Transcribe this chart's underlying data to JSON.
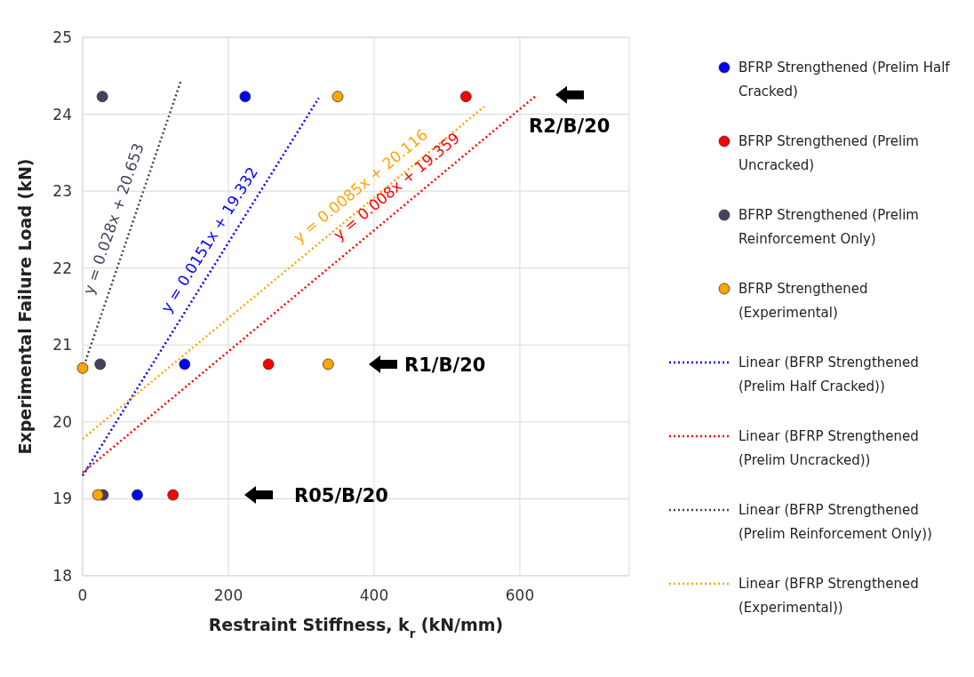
{
  "chart_data": {
    "type": "scatter",
    "xlabel": "Restraint Stiffness, k$_{r}$ (kN/mm)",
    "ylabel": "Experimental Failure Load (kN)",
    "xlim": [
      0,
      750
    ],
    "xticks": [
      0,
      200,
      400,
      600
    ],
    "ylim": [
      18,
      25
    ],
    "yticks": [
      18,
      19,
      20,
      21,
      22,
      23,
      24,
      25
    ],
    "grid": true,
    "legend": "right",
    "series": [
      {
        "name": "BFRP Strengthened (Prelim Half Cracked)",
        "color": "#0000ff",
        "marker": "circle",
        "x": [
          75,
          140,
          223
        ],
        "values": [
          19.05,
          20.75,
          24.23
        ]
      },
      {
        "name": "BFRP Strengthened (Prelim Uncracked)",
        "color": "#ff0000",
        "marker": "circle",
        "x": [
          124,
          255,
          526
        ],
        "values": [
          19.05,
          20.75,
          24.23
        ]
      },
      {
        "name": "BFRP Strengthened (Prelim Reinforcement Only)",
        "color": "#4b3f5e",
        "marker": "circle",
        "x": [
          28,
          24,
          27
        ],
        "values": [
          19.05,
          20.75,
          24.23
        ]
      },
      {
        "name": "BFRP Strengthened (Experimental)",
        "color": "#ffa500",
        "marker": "circle",
        "x": [
          0,
          21,
          337,
          350
        ],
        "values": [
          20.7,
          19.05,
          20.75,
          24.23
        ]
      },
      {
        "name": "Linear (BFRP Strengthened (Prelim Half Cracked))",
        "type": "line",
        "color": "#0000ff",
        "marker": "none",
        "line_style": "dotted",
        "x": [
          0,
          324
        ],
        "values": [
          19.3,
          24.21
        ]
      },
      {
        "name": "Linear (BFRP Strengthened (Prelim Uncracked))",
        "type": "line",
        "color": "#ff0000",
        "marker": "none",
        "line_style": "dotted",
        "x": [
          0,
          622
        ],
        "values": [
          19.34,
          24.24
        ]
      },
      {
        "name": "Linear (BFRP Strengthened (Prelim Reinforcement Only))",
        "type": "line",
        "color": "#4b3f5e",
        "marker": "none",
        "line_style": "dotted",
        "x": [
          0,
          135
        ],
        "values": [
          20.68,
          24.44
        ]
      },
      {
        "name": "Linear (BFRP Strengthened (Experimental))",
        "type": "line",
        "color": "#ffa500",
        "marker": "none",
        "line_style": "dotted",
        "x": [
          0,
          551
        ],
        "values": [
          19.78,
          24.1
        ]
      }
    ],
    "annotations": [
      "y = 0.0151x + 19.332",
      "y = 0.008x + 19.359",
      "y = 0.028x + 20.653",
      "y = 0.0085x + 20.116",
      "R2/B/20",
      "R1/B/20",
      "R05/B/20"
    ]
  }
}
